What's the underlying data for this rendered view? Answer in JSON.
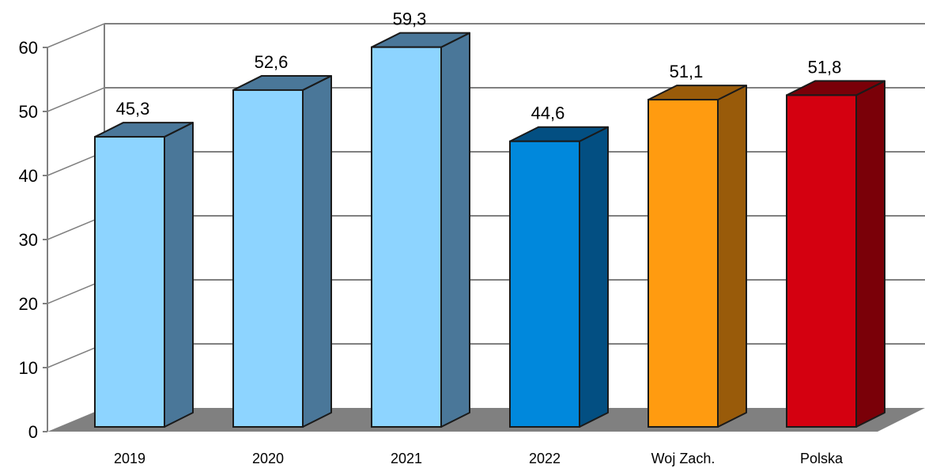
{
  "chart_data": {
    "type": "bar",
    "title": "",
    "xlabel": "",
    "ylabel": "",
    "categories": [
      "2019",
      "2020",
      "2021",
      "2022",
      "Woj Zach.",
      "Polska"
    ],
    "values": [
      45.3,
      52.6,
      59.3,
      44.6,
      51.1,
      51.8
    ],
    "data_labels": [
      "45,3",
      "52,6",
      "59,3",
      "44,6",
      "51,1",
      "51,8"
    ],
    "ylim": [
      0,
      60
    ],
    "yticks": [
      0,
      10,
      20,
      30,
      40,
      50,
      60
    ],
    "ytick_labels": [
      "0",
      "10",
      "20",
      "30",
      "40",
      "50",
      "60"
    ],
    "grid": true,
    "legend": "none",
    "style": "3d",
    "bar_colors": [
      {
        "front": "#8dd4ff",
        "side": "#4a7799",
        "top": "#4a7799"
      },
      {
        "front": "#8dd4ff",
        "side": "#4a7799",
        "top": "#4a7799"
      },
      {
        "front": "#8dd4ff",
        "side": "#4a7799",
        "top": "#4a7799"
      },
      {
        "front": "#0088dc",
        "side": "#034f82",
        "top": "#034f82"
      },
      {
        "front": "#ff9b10",
        "side": "#995b0a",
        "top": "#995b0a"
      },
      {
        "front": "#d40010",
        "side": "#7a0008",
        "top": "#7a0008"
      }
    ],
    "floor_color": "#808080",
    "grid_color": "#808080"
  }
}
